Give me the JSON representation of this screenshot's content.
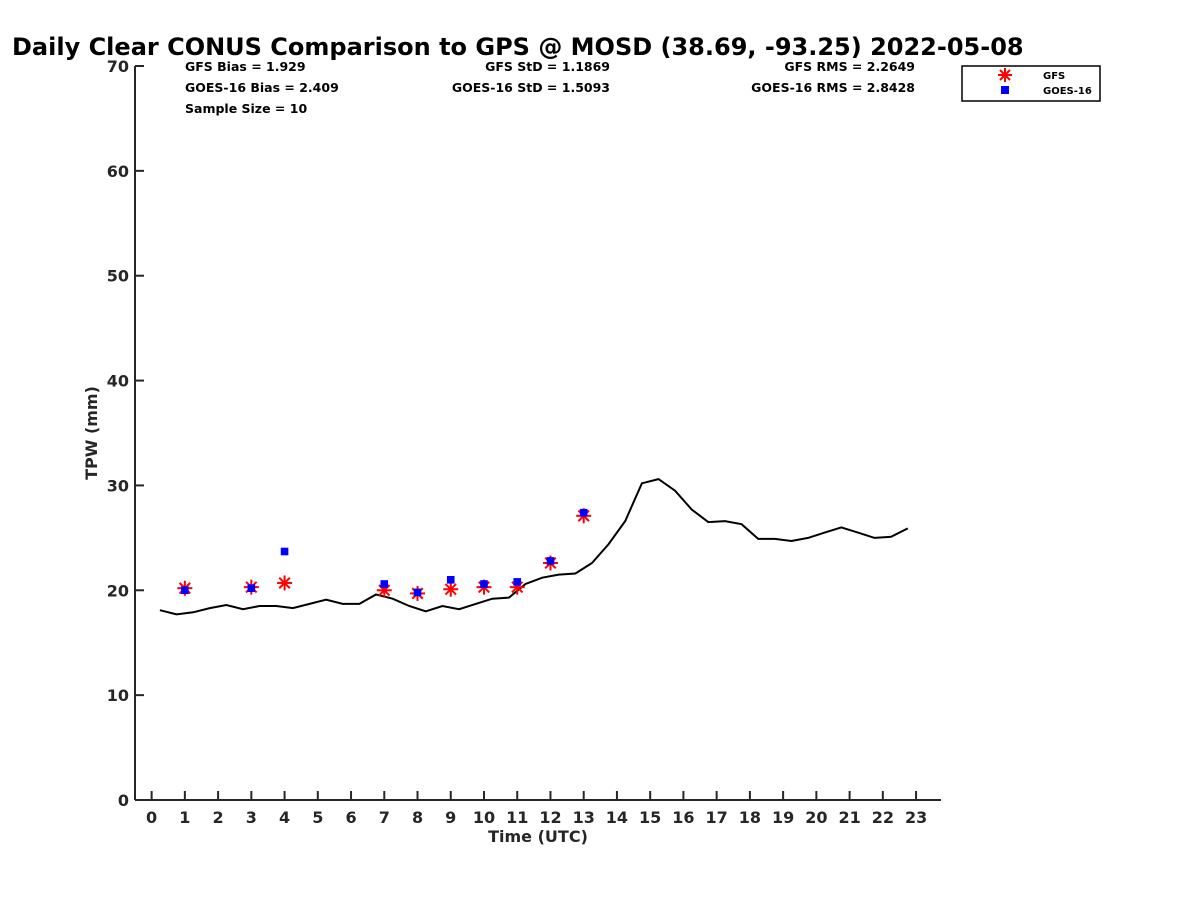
{
  "chart_data": {
    "type": "line+scatter",
    "title": "Daily Clear CONUS Comparison to GPS @ MOSD (38.69, -93.25) 2022-05-08",
    "xlabel": "Time (UTC)",
    "ylabel": "TPW (mm)",
    "xlim": [
      -0.5,
      23.75
    ],
    "ylim": [
      0,
      70
    ],
    "x_ticks": [
      0,
      1,
      2,
      3,
      4,
      5,
      6,
      7,
      8,
      9,
      10,
      11,
      12,
      13,
      14,
      15,
      16,
      17,
      18,
      19,
      20,
      21,
      22,
      23
    ],
    "y_ticks": [
      0,
      10,
      20,
      30,
      40,
      50,
      60,
      70
    ],
    "legend_position": "top-right, outside axes",
    "series": [
      {
        "name": "GPS",
        "kind": "line",
        "color": "#000000",
        "x": [
          0.25,
          0.75,
          1.25,
          1.75,
          2.25,
          2.75,
          3.25,
          3.75,
          4.25,
          4.75,
          5.25,
          5.75,
          6.25,
          6.75,
          7.25,
          7.75,
          8.25,
          8.75,
          9.25,
          9.75,
          10.25,
          10.75,
          11.25,
          11.75,
          12.25,
          12.75,
          13.25,
          13.75,
          14.25,
          14.75,
          15.25,
          15.75,
          16.25,
          16.75,
          17.25,
          17.75,
          18.25,
          18.75,
          19.25,
          19.75,
          20.25,
          20.75,
          21.25,
          21.75,
          22.25,
          22.75
        ],
        "y": [
          18.1,
          17.7,
          17.9,
          18.3,
          18.6,
          18.2,
          18.5,
          18.5,
          18.3,
          18.7,
          19.1,
          18.7,
          18.7,
          19.6,
          19.2,
          18.5,
          18.0,
          18.5,
          18.2,
          18.7,
          19.2,
          19.3,
          20.6,
          21.2,
          21.5,
          21.6,
          22.6,
          24.4,
          26.6,
          30.2,
          30.6,
          29.5,
          27.7,
          26.5,
          26.6,
          26.3,
          24.9,
          24.9,
          24.7,
          25.0,
          25.5,
          26.0,
          25.5,
          25.0,
          25.1,
          25.9
        ]
      },
      {
        "name": "GFS",
        "kind": "scatter",
        "marker": "asterisk",
        "color": "#ff0000",
        "x": [
          1,
          3,
          4,
          7,
          8,
          9,
          10,
          11,
          12,
          13
        ],
        "y": [
          20.2,
          20.3,
          20.7,
          20.0,
          19.7,
          20.1,
          20.3,
          20.3,
          22.6,
          27.1
        ]
      },
      {
        "name": "GOES-16",
        "kind": "scatter",
        "marker": "square",
        "color": "#0000ff",
        "x": [
          1,
          3,
          4,
          7,
          8,
          9,
          10,
          11,
          12,
          13
        ],
        "y": [
          20.0,
          20.2,
          23.7,
          20.6,
          19.8,
          21.0,
          20.6,
          20.8,
          22.8,
          27.4
        ]
      }
    ],
    "stats": {
      "gfs_bias": "GFS Bias = 1.929",
      "goes_bias": "GOES-16 Bias = 2.409",
      "sample_size": "Sample Size = 10",
      "gfs_std": "GFS StD = 1.1869",
      "goes_std": "GOES-16 StD = 1.5093",
      "gfs_rms": "GFS RMS = 2.2649",
      "goes_rms": "GOES-16 RMS = 2.8428"
    },
    "legend": {
      "gfs": "GFS",
      "goes": "GOES-16"
    }
  }
}
